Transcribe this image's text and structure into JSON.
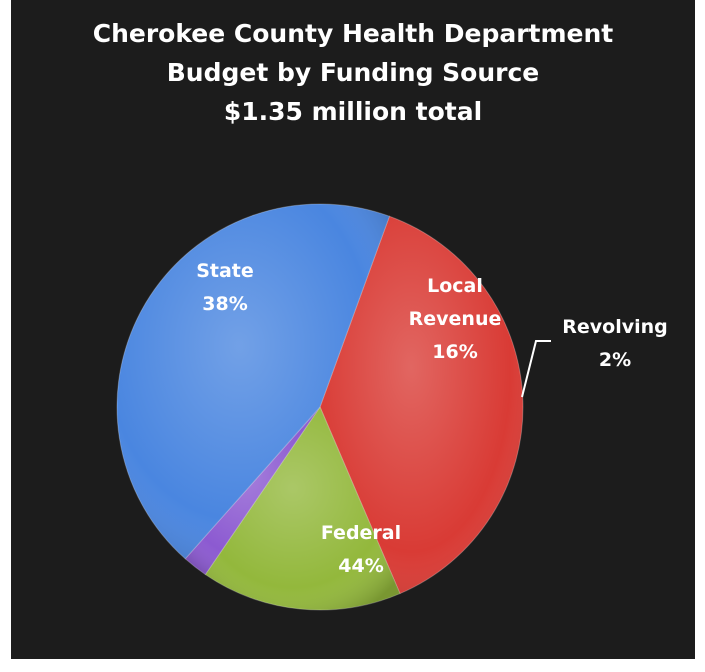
{
  "chart_data": {
    "type": "pie",
    "title": [
      "Cherokee County Health Department",
      "Budget by Funding Source",
      "$1.35 million total"
    ],
    "slices": [
      {
        "label": [
          "State",
          "38%"
        ],
        "value": 38,
        "color": "#d93b35"
      },
      {
        "label": [
          "Local",
          "Revenue",
          "16%"
        ],
        "value": 16,
        "color": "#93b83c"
      },
      {
        "label": [
          "Revolving",
          "2%"
        ],
        "value": 2,
        "color": "#8c5ad1"
      },
      {
        "label": [
          "Federal",
          "44%"
        ],
        "value": 44,
        "color": "#4a86e0"
      }
    ]
  }
}
